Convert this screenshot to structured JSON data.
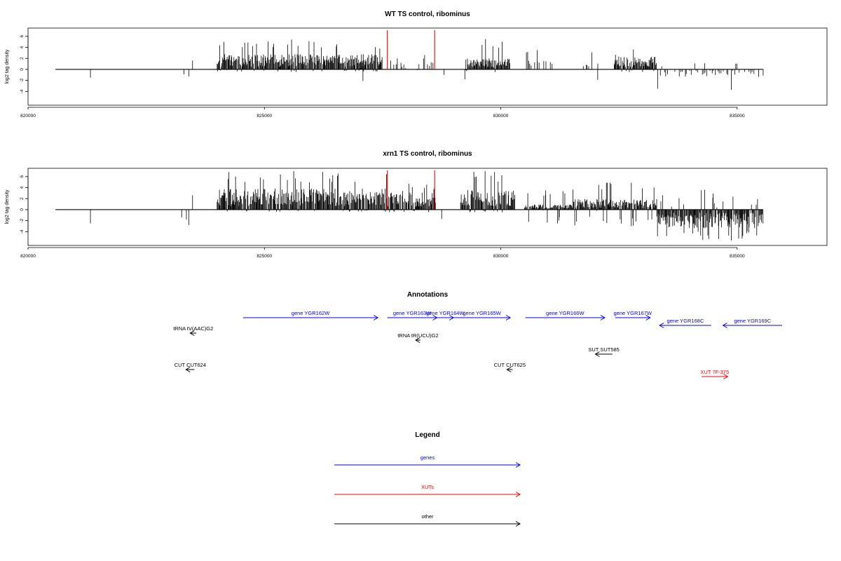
{
  "colors": {
    "genes": "#0000ff",
    "xuts": "#ff0000",
    "other": "#000000",
    "marker": "#cc0000",
    "signal": "#000000"
  },
  "chart_data": [
    {
      "type": "bar",
      "title": "WT TS control, ribominus",
      "ylabel": "log2 tag density",
      "xlim": [
        820000,
        836900
      ],
      "ylim": [
        -6.5,
        7.5
      ],
      "xticks": [
        820000,
        825000,
        830000,
        835000
      ],
      "yticks": [
        -4,
        -2,
        0,
        2,
        4,
        6
      ],
      "xtick_labels": [
        "820000",
        "825000",
        "830000",
        "835000"
      ],
      "ytick_labels": [
        "-4",
        "-2",
        "0",
        "2",
        "4",
        "6"
      ],
      "baseline": [
        820580,
        835550
      ],
      "markers": [
        827600,
        828600
      ],
      "series": [
        {
          "x": [
            821320,
            823300,
            823400,
            823480
          ],
          "values": [
            -1.5,
            -0.9,
            -1.3,
            1.6
          ]
        },
        {
          "range": [
            824000,
            827500
          ],
          "style": "dense",
          "typical": 2.3,
          "max": 5.4,
          "min": -0.5,
          "seed": 11
        },
        {
          "range": [
            827000,
            827120
          ],
          "style": "dense",
          "typical": 0.5,
          "max": 0.6,
          "min": -2.1,
          "seed": 12
        },
        {
          "range": [
            827640,
            828020
          ],
          "style": "sparse",
          "typical": 1.0,
          "max": 2.0,
          "min": -0.4,
          "seed": 13
        },
        {
          "range": [
            828200,
            828620
          ],
          "style": "sparse",
          "typical": 1.6,
          "max": 2.6,
          "min": -0.4,
          "seed": 14
        },
        {
          "x": [
            828800
          ],
          "values": [
            -1.0
          ]
        },
        {
          "range": [
            829250,
            830200
          ],
          "style": "dense",
          "typical": 1.7,
          "max": 5.5,
          "min": -0.6,
          "seed": 15
        },
        {
          "x": [
            829240
          ],
          "values": [
            -1.8
          ]
        },
        {
          "range": [
            830500,
            831100
          ],
          "style": "sparse",
          "typical": 1.3,
          "max": 3.5,
          "min": -0.4,
          "seed": 16
        },
        {
          "range": [
            831700,
            832200
          ],
          "style": "sparse",
          "typical": 1.2,
          "max": 3.1,
          "min": -1.9,
          "seed": 17
        },
        {
          "range": [
            832400,
            833300
          ],
          "style": "dense",
          "typical": 2.0,
          "max": 3.6,
          "min": -0.5,
          "seed": 18
        },
        {
          "range": [
            833300,
            835550
          ],
          "style": "sparse",
          "typical": -1.2,
          "max": 1.1,
          "min": -3.7,
          "seed": 19
        }
      ]
    },
    {
      "type": "bar",
      "title": "xrn1 TS control, ribominus",
      "ylabel": "log2 tag density",
      "xlim": [
        820000,
        836900
      ],
      "ylim": [
        -6.5,
        7.5
      ],
      "xticks": [
        820000,
        825000,
        830000,
        835000
      ],
      "yticks": [
        -4,
        -2,
        0,
        2,
        4,
        6
      ],
      "xtick_labels": [
        "820000",
        "825000",
        "830000",
        "835000"
      ],
      "ytick_labels": [
        "-4",
        "-2",
        "0",
        "2",
        "4",
        "6"
      ],
      "baseline": [
        820580,
        835550
      ],
      "markers": [
        827600,
        828600
      ],
      "series": [
        {
          "x": [
            821320,
            823250,
            823350,
            823400,
            823480
          ],
          "values": [
            -2.5,
            -1.4,
            -1.8,
            -2.8,
            2.6
          ]
        },
        {
          "range": [
            824000,
            827600
          ],
          "style": "dense",
          "typical": 3.2,
          "max": 7.0,
          "min": -0.4,
          "seed": 21
        },
        {
          "range": [
            827600,
            828620
          ],
          "style": "dense",
          "typical": 2.6,
          "max": 4.7,
          "min": -0.6,
          "seed": 22
        },
        {
          "x": [
            828750
          ],
          "values": [
            -1.7
          ]
        },
        {
          "range": [
            829150,
            830300
          ],
          "style": "dense",
          "typical": 3.0,
          "max": 7.0,
          "min": -0.5,
          "seed": 23
        },
        {
          "range": [
            830500,
            831500
          ],
          "style": "dense",
          "typical": 0.8,
          "max": 3.5,
          "min": -2.5,
          "seed": 24
        },
        {
          "range": [
            831500,
            833300
          ],
          "style": "dense",
          "typical": 1.6,
          "max": 4.9,
          "min": -3.0,
          "seed": 25
        },
        {
          "range": [
            833300,
            835550
          ],
          "style": "dense",
          "typical": -2.8,
          "max": 3.6,
          "min": -5.6,
          "seed": 26
        }
      ]
    }
  ],
  "annotations": {
    "title": "Annotations",
    "features": [
      {
        "label": "gene YGR162W",
        "class": "genes",
        "start": 824550,
        "end": 827400,
        "strand": "+",
        "row": 0
      },
      {
        "label": "gene YGR163W",
        "class": "genes",
        "start": 827600,
        "end": 828650,
        "strand": "+",
        "row": 0
      },
      {
        "label": "gene YGR164W",
        "class": "genes",
        "start": 828650,
        "end": 829000,
        "strand": "+",
        "row": 0
      },
      {
        "label": "gene YGR165W",
        "class": "genes",
        "start": 829000,
        "end": 830200,
        "strand": "+",
        "row": 0
      },
      {
        "label": "gene YGR166W",
        "class": "genes",
        "start": 830520,
        "end": 832200,
        "strand": "+",
        "row": 0
      },
      {
        "label": "gene YGR167W",
        "class": "genes",
        "start": 832420,
        "end": 833160,
        "strand": "+",
        "row": 0
      },
      {
        "label": "gene YGR168C",
        "class": "genes",
        "start": 833360,
        "end": 834450,
        "strand": "-",
        "row": 1
      },
      {
        "label": "gene YGR169C",
        "class": "genes",
        "start": 834700,
        "end": 835950,
        "strand": "-",
        "row": 1
      },
      {
        "label": "tRNA tV(AAC)G2",
        "class": "other",
        "start": 823430,
        "end": 823560,
        "strand": "-",
        "row": 2
      },
      {
        "label": "tRNA tR(UCU)G2",
        "class": "other",
        "start": 828200,
        "end": 828300,
        "strand": "-",
        "row": 3
      },
      {
        "label": "SUT SUT585",
        "class": "other",
        "start": 832000,
        "end": 832360,
        "strand": "-",
        "row": 4
      },
      {
        "label": "CUT CUT624",
        "class": "other",
        "start": 823340,
        "end": 823520,
        "strand": "-",
        "row": 5
      },
      {
        "label": "CUT CUT625",
        "class": "other",
        "start": 830130,
        "end": 830250,
        "strand": "-",
        "row": 5
      },
      {
        "label": "XUT 7F-375",
        "class": "xuts",
        "start": 834250,
        "end": 834800,
        "strand": "+",
        "row": 6
      }
    ]
  },
  "legend": {
    "title": "Legend",
    "items": [
      {
        "label": "genes",
        "class": "genes"
      },
      {
        "label": "XUTs",
        "class": "xuts"
      },
      {
        "label": "other",
        "class": "other"
      }
    ]
  }
}
